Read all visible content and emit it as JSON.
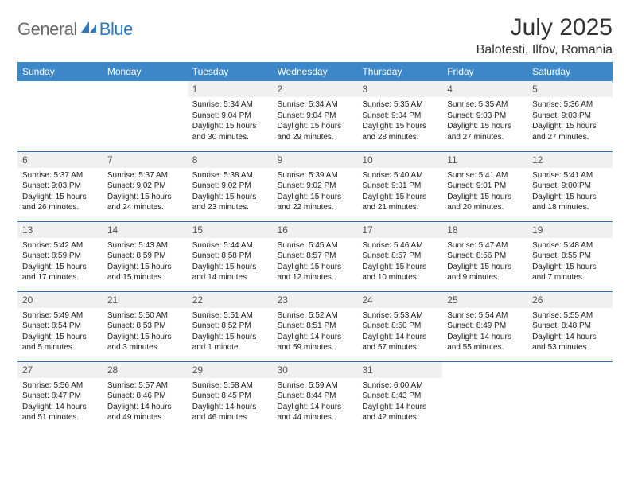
{
  "logo": {
    "part1": "General",
    "part2": "Blue"
  },
  "title": "July 2025",
  "location": "Balotesti, Ilfov, Romania",
  "colors": {
    "header_bg": "#3b87c8",
    "header_text": "#ffffff",
    "daynum_bg": "#eef0f1",
    "rule": "#2f6fa8",
    "logo_gray": "#6a6a6a",
    "logo_blue": "#2f7abf"
  },
  "day_headers": [
    "Sunday",
    "Monday",
    "Tuesday",
    "Wednesday",
    "Thursday",
    "Friday",
    "Saturday"
  ],
  "weeks": [
    [
      null,
      null,
      {
        "n": "1",
        "sr": "Sunrise: 5:34 AM",
        "ss": "Sunset: 9:04 PM",
        "dl": "Daylight: 15 hours and 30 minutes."
      },
      {
        "n": "2",
        "sr": "Sunrise: 5:34 AM",
        "ss": "Sunset: 9:04 PM",
        "dl": "Daylight: 15 hours and 29 minutes."
      },
      {
        "n": "3",
        "sr": "Sunrise: 5:35 AM",
        "ss": "Sunset: 9:04 PM",
        "dl": "Daylight: 15 hours and 28 minutes."
      },
      {
        "n": "4",
        "sr": "Sunrise: 5:35 AM",
        "ss": "Sunset: 9:03 PM",
        "dl": "Daylight: 15 hours and 27 minutes."
      },
      {
        "n": "5",
        "sr": "Sunrise: 5:36 AM",
        "ss": "Sunset: 9:03 PM",
        "dl": "Daylight: 15 hours and 27 minutes."
      }
    ],
    [
      {
        "n": "6",
        "sr": "Sunrise: 5:37 AM",
        "ss": "Sunset: 9:03 PM",
        "dl": "Daylight: 15 hours and 26 minutes."
      },
      {
        "n": "7",
        "sr": "Sunrise: 5:37 AM",
        "ss": "Sunset: 9:02 PM",
        "dl": "Daylight: 15 hours and 24 minutes."
      },
      {
        "n": "8",
        "sr": "Sunrise: 5:38 AM",
        "ss": "Sunset: 9:02 PM",
        "dl": "Daylight: 15 hours and 23 minutes."
      },
      {
        "n": "9",
        "sr": "Sunrise: 5:39 AM",
        "ss": "Sunset: 9:02 PM",
        "dl": "Daylight: 15 hours and 22 minutes."
      },
      {
        "n": "10",
        "sr": "Sunrise: 5:40 AM",
        "ss": "Sunset: 9:01 PM",
        "dl": "Daylight: 15 hours and 21 minutes."
      },
      {
        "n": "11",
        "sr": "Sunrise: 5:41 AM",
        "ss": "Sunset: 9:01 PM",
        "dl": "Daylight: 15 hours and 20 minutes."
      },
      {
        "n": "12",
        "sr": "Sunrise: 5:41 AM",
        "ss": "Sunset: 9:00 PM",
        "dl": "Daylight: 15 hours and 18 minutes."
      }
    ],
    [
      {
        "n": "13",
        "sr": "Sunrise: 5:42 AM",
        "ss": "Sunset: 8:59 PM",
        "dl": "Daylight: 15 hours and 17 minutes."
      },
      {
        "n": "14",
        "sr": "Sunrise: 5:43 AM",
        "ss": "Sunset: 8:59 PM",
        "dl": "Daylight: 15 hours and 15 minutes."
      },
      {
        "n": "15",
        "sr": "Sunrise: 5:44 AM",
        "ss": "Sunset: 8:58 PM",
        "dl": "Daylight: 15 hours and 14 minutes."
      },
      {
        "n": "16",
        "sr": "Sunrise: 5:45 AM",
        "ss": "Sunset: 8:57 PM",
        "dl": "Daylight: 15 hours and 12 minutes."
      },
      {
        "n": "17",
        "sr": "Sunrise: 5:46 AM",
        "ss": "Sunset: 8:57 PM",
        "dl": "Daylight: 15 hours and 10 minutes."
      },
      {
        "n": "18",
        "sr": "Sunrise: 5:47 AM",
        "ss": "Sunset: 8:56 PM",
        "dl": "Daylight: 15 hours and 9 minutes."
      },
      {
        "n": "19",
        "sr": "Sunrise: 5:48 AM",
        "ss": "Sunset: 8:55 PM",
        "dl": "Daylight: 15 hours and 7 minutes."
      }
    ],
    [
      {
        "n": "20",
        "sr": "Sunrise: 5:49 AM",
        "ss": "Sunset: 8:54 PM",
        "dl": "Daylight: 15 hours and 5 minutes."
      },
      {
        "n": "21",
        "sr": "Sunrise: 5:50 AM",
        "ss": "Sunset: 8:53 PM",
        "dl": "Daylight: 15 hours and 3 minutes."
      },
      {
        "n": "22",
        "sr": "Sunrise: 5:51 AM",
        "ss": "Sunset: 8:52 PM",
        "dl": "Daylight: 15 hours and 1 minute."
      },
      {
        "n": "23",
        "sr": "Sunrise: 5:52 AM",
        "ss": "Sunset: 8:51 PM",
        "dl": "Daylight: 14 hours and 59 minutes."
      },
      {
        "n": "24",
        "sr": "Sunrise: 5:53 AM",
        "ss": "Sunset: 8:50 PM",
        "dl": "Daylight: 14 hours and 57 minutes."
      },
      {
        "n": "25",
        "sr": "Sunrise: 5:54 AM",
        "ss": "Sunset: 8:49 PM",
        "dl": "Daylight: 14 hours and 55 minutes."
      },
      {
        "n": "26",
        "sr": "Sunrise: 5:55 AM",
        "ss": "Sunset: 8:48 PM",
        "dl": "Daylight: 14 hours and 53 minutes."
      }
    ],
    [
      {
        "n": "27",
        "sr": "Sunrise: 5:56 AM",
        "ss": "Sunset: 8:47 PM",
        "dl": "Daylight: 14 hours and 51 minutes."
      },
      {
        "n": "28",
        "sr": "Sunrise: 5:57 AM",
        "ss": "Sunset: 8:46 PM",
        "dl": "Daylight: 14 hours and 49 minutes."
      },
      {
        "n": "29",
        "sr": "Sunrise: 5:58 AM",
        "ss": "Sunset: 8:45 PM",
        "dl": "Daylight: 14 hours and 46 minutes."
      },
      {
        "n": "30",
        "sr": "Sunrise: 5:59 AM",
        "ss": "Sunset: 8:44 PM",
        "dl": "Daylight: 14 hours and 44 minutes."
      },
      {
        "n": "31",
        "sr": "Sunrise: 6:00 AM",
        "ss": "Sunset: 8:43 PM",
        "dl": "Daylight: 14 hours and 42 minutes."
      },
      null,
      null
    ]
  ]
}
